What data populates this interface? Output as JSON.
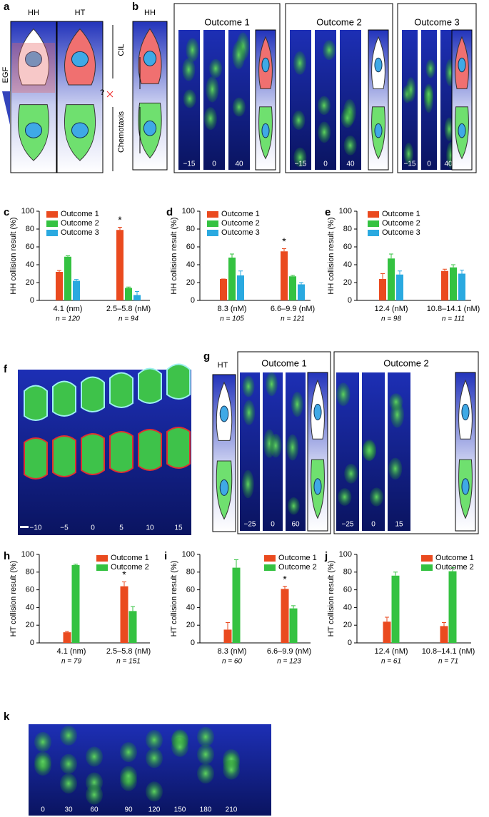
{
  "panels": {
    "letters": [
      "a",
      "b",
      "c",
      "d",
      "e",
      "f",
      "g",
      "h",
      "i",
      "j",
      "k"
    ],
    "a": {
      "labels": [
        "HH",
        "HT"
      ],
      "cil": "CIL",
      "egf": "EGF",
      "chemotaxis": "Chemotaxis",
      "question": "?"
    },
    "b": {
      "label": "HH",
      "outcomes": [
        "Outcome 1",
        "Outcome 2",
        "Outcome 3"
      ],
      "times": [
        "−15",
        "0",
        "40"
      ]
    },
    "f": {
      "times": [
        "−10",
        "−5",
        "0",
        "5",
        "10",
        "15"
      ]
    },
    "g": {
      "label": "HT",
      "outcomes": [
        "Outcome 1",
        "Outcome 2"
      ],
      "times": [
        [
          "−25",
          "0",
          "60"
        ],
        [
          "−25",
          "0",
          "15"
        ]
      ]
    },
    "k": {
      "times": [
        "0",
        "30",
        "60",
        "90",
        "120",
        "150",
        "180",
        "210"
      ]
    }
  },
  "chart_data": [
    {
      "type": "bar",
      "y_label": "HH collision result (%)",
      "categories": [
        "4.1 (nm)",
        "2.5–5.8 (nM)"
      ],
      "n_labels": [
        "n = 120",
        "n = 94"
      ],
      "series": [
        {
          "name": "Outcome 1",
          "color": "#ea4a1f",
          "values": [
            32,
            79
          ],
          "errors": [
            1.5,
            3
          ]
        },
        {
          "name": "Outcome 2",
          "color": "#34c241",
          "values": [
            49,
            14
          ],
          "errors": [
            1,
            1
          ]
        },
        {
          "name": "Outcome 3",
          "color": "#2aa9e0",
          "values": [
            22,
            6
          ],
          "errors": [
            1.5,
            4
          ]
        }
      ],
      "annotations": [
        {
          "text": "*",
          "category": "2.5–5.8 (nM)"
        }
      ],
      "ylim": [
        0,
        100
      ],
      "yticks": [
        0,
        20,
        40,
        60,
        80,
        100
      ]
    },
    {
      "type": "bar",
      "y_label": "HH collision result (%)",
      "categories": [
        "8.3 (nM)",
        "6.6–9.9 (nM)"
      ],
      "n_labels": [
        "n = 105",
        "n = 121"
      ],
      "series": [
        {
          "name": "Outcome 1",
          "color": "#ea4a1f",
          "values": [
            24,
            55
          ],
          "errors": [
            0,
            3
          ]
        },
        {
          "name": "Outcome 2",
          "color": "#34c241",
          "values": [
            48,
            27
          ],
          "errors": [
            4,
            1
          ]
        },
        {
          "name": "Outcome 3",
          "color": "#2aa9e0",
          "values": [
            28,
            18
          ],
          "errors": [
            5,
            2
          ]
        }
      ],
      "annotations": [
        {
          "text": "*",
          "category": "6.6–9.9 (nM)"
        }
      ],
      "ylim": [
        0,
        100
      ],
      "yticks": [
        0,
        20,
        40,
        60,
        80,
        100
      ]
    },
    {
      "type": "bar",
      "y_label": "HH collision result (%)",
      "categories": [
        "12.4 (nM)",
        "10.8–14.1 (nM)"
      ],
      "n_labels": [
        "n = 98",
        "n = 111"
      ],
      "series": [
        {
          "name": "Outcome 1",
          "color": "#ea4a1f",
          "values": [
            24,
            33
          ],
          "errors": [
            6,
            2
          ]
        },
        {
          "name": "Outcome 2",
          "color": "#34c241",
          "values": [
            47,
            37
          ],
          "errors": [
            5,
            3
          ]
        },
        {
          "name": "Outcome 3",
          "color": "#2aa9e0",
          "values": [
            29,
            30
          ],
          "errors": [
            4,
            4
          ]
        }
      ],
      "ylim": [
        0,
        100
      ],
      "yticks": [
        0,
        20,
        40,
        60,
        80,
        100
      ]
    },
    {
      "type": "bar",
      "y_label": "HT collision result (%)",
      "categories": [
        "4.1 (nm)",
        "2.5–5.8 (nM)"
      ],
      "n_labels": [
        "n = 79",
        "n = 151"
      ],
      "series": [
        {
          "name": "Outcome 1",
          "color": "#ea4a1f",
          "values": [
            12,
            64
          ],
          "errors": [
            1,
            5
          ]
        },
        {
          "name": "Outcome 2",
          "color": "#34c241",
          "values": [
            88,
            36
          ],
          "errors": [
            1,
            5
          ]
        }
      ],
      "annotations": [
        {
          "text": "*",
          "category": "2.5–5.8 (nM)"
        }
      ],
      "ylim": [
        0,
        100
      ],
      "yticks": [
        0,
        20,
        40,
        60,
        80,
        100
      ]
    },
    {
      "type": "bar",
      "y_label": "HT collision result (%)",
      "categories": [
        "8.3 (nM)",
        "6.6–9.9 (nM)"
      ],
      "n_labels": [
        "n = 60",
        "n = 123"
      ],
      "series": [
        {
          "name": "Outcome 1",
          "color": "#ea4a1f",
          "values": [
            15,
            61
          ],
          "errors": [
            8,
            3
          ]
        },
        {
          "name": "Outcome 2",
          "color": "#34c241",
          "values": [
            85,
            39
          ],
          "errors": [
            9,
            3
          ]
        }
      ],
      "annotations": [
        {
          "text": "*",
          "category": "6.6–9.9 (nM)"
        }
      ],
      "ylim": [
        0,
        100
      ],
      "yticks": [
        0,
        20,
        40,
        60,
        80,
        100
      ]
    },
    {
      "type": "bar",
      "y_label": "HT collision result (%)",
      "categories": [
        "12.4 (nM)",
        "10.8–14.1 (nM)"
      ],
      "n_labels": [
        "n = 61",
        "n = 71"
      ],
      "series": [
        {
          "name": "Outcome 1",
          "color": "#ea4a1f",
          "values": [
            24,
            19
          ],
          "errors": [
            5,
            4
          ]
        },
        {
          "name": "Outcome 2",
          "color": "#34c241",
          "values": [
            76,
            81
          ],
          "errors": [
            4,
            4
          ]
        }
      ],
      "ylim": [
        0,
        100
      ],
      "yticks": [
        0,
        20,
        40,
        60,
        80,
        100
      ]
    }
  ]
}
